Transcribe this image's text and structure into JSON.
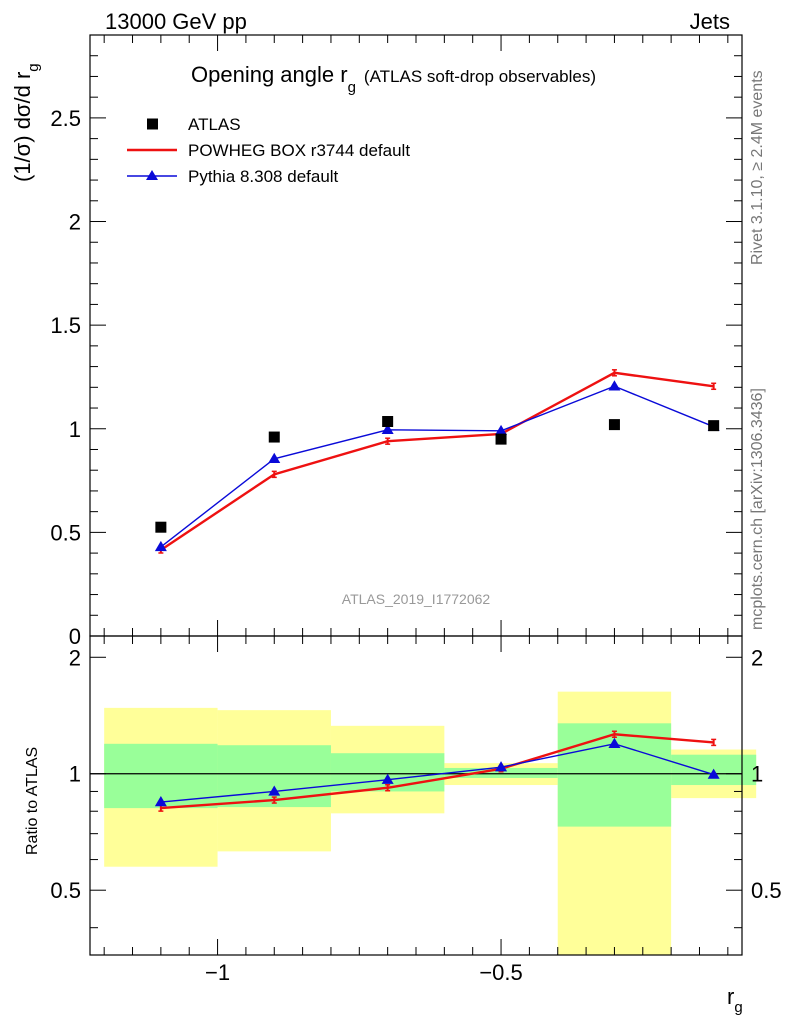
{
  "header": {
    "left": "13000 GeV pp",
    "right": "Jets"
  },
  "side_labels": {
    "rivet": "Rivet 3.1.10, ≥ 2.4M events",
    "mcplots": "mcplots.cern.ch [arXiv:1306.3436]"
  },
  "chart_data": {
    "type": "line",
    "title_main": "Opening angle r",
    "title_sub": "g",
    "title_paren": "(ATLAS soft-drop observables)",
    "watermark": "ATLAS_2019_I1772062",
    "ylabel": "(1/σ) dσ/d r",
    "ylabel_sub": "g",
    "xlabel": "r",
    "xlabel_sub": "g",
    "ratio_ylabel": "Ratio to ATLAS",
    "xlim": [
      -1.225,
      -0.075
    ],
    "ylim": [
      0,
      2.9
    ],
    "ratio_ylim": [
      0.34,
      2.27
    ],
    "xticks": [
      {
        "value": -1.0,
        "label": "−1"
      },
      {
        "value": -0.5,
        "label": "−0.5"
      }
    ],
    "yticks": [
      {
        "value": 0,
        "label": "0"
      },
      {
        "value": 0.5,
        "label": "0.5"
      },
      {
        "value": 1,
        "label": "1"
      },
      {
        "value": 1.5,
        "label": "1.5"
      },
      {
        "value": 2,
        "label": "2"
      },
      {
        "value": 2.5,
        "label": "2.5"
      }
    ],
    "ratio_yticks": [
      {
        "value": 0.5,
        "label": "0.5"
      },
      {
        "value": 1,
        "label": "1"
      },
      {
        "value": 2,
        "label": "2"
      }
    ],
    "x": [
      -1.1,
      -0.9,
      -0.7,
      -0.5,
      -0.3,
      -0.125
    ],
    "bin_edges": [
      -1.2,
      -1.0,
      -0.8,
      -0.6,
      -0.4,
      -0.2,
      -0.05
    ],
    "series": [
      {
        "name": "ATLAS",
        "style": "marker",
        "color": "#000000",
        "values": [
          0.525,
          0.96,
          1.035,
          0.95,
          1.02,
          1.015
        ],
        "ratio": [
          1,
          1,
          1,
          1,
          1,
          1
        ],
        "band_total": [
          [
            0.575,
            1.48
          ],
          [
            0.63,
            1.46
          ],
          [
            0.79,
            1.33
          ],
          [
            0.935,
            1.065
          ],
          [
            0.25,
            1.63
          ],
          [
            0.865,
            1.155
          ]
        ],
        "band_stat": [
          [
            0.815,
            1.195
          ],
          [
            0.82,
            1.185
          ],
          [
            0.9,
            1.13
          ],
          [
            0.975,
            1.035
          ],
          [
            0.73,
            1.35
          ],
          [
            0.935,
            1.12
          ]
        ]
      },
      {
        "name": "POWHEG BOX r3744 default",
        "style": "line",
        "color": "#ee1111",
        "values": [
          0.415,
          0.78,
          0.94,
          0.975,
          1.27,
          1.205
        ],
        "ratio": [
          0.815,
          0.855,
          0.92,
          1.03,
          1.265,
          1.205
        ]
      },
      {
        "name": "Pythia 8.308 default",
        "style": "line-triangle",
        "color": "#0a0ad8",
        "values": [
          0.43,
          0.855,
          0.995,
          0.99,
          1.205,
          1.01
        ],
        "ratio": [
          0.845,
          0.9,
          0.965,
          1.04,
          1.195,
          0.995
        ]
      }
    ],
    "colors": {
      "band_total": "#ffff99",
      "band_stat": "#99ff99"
    },
    "legend_position": "top-left"
  }
}
